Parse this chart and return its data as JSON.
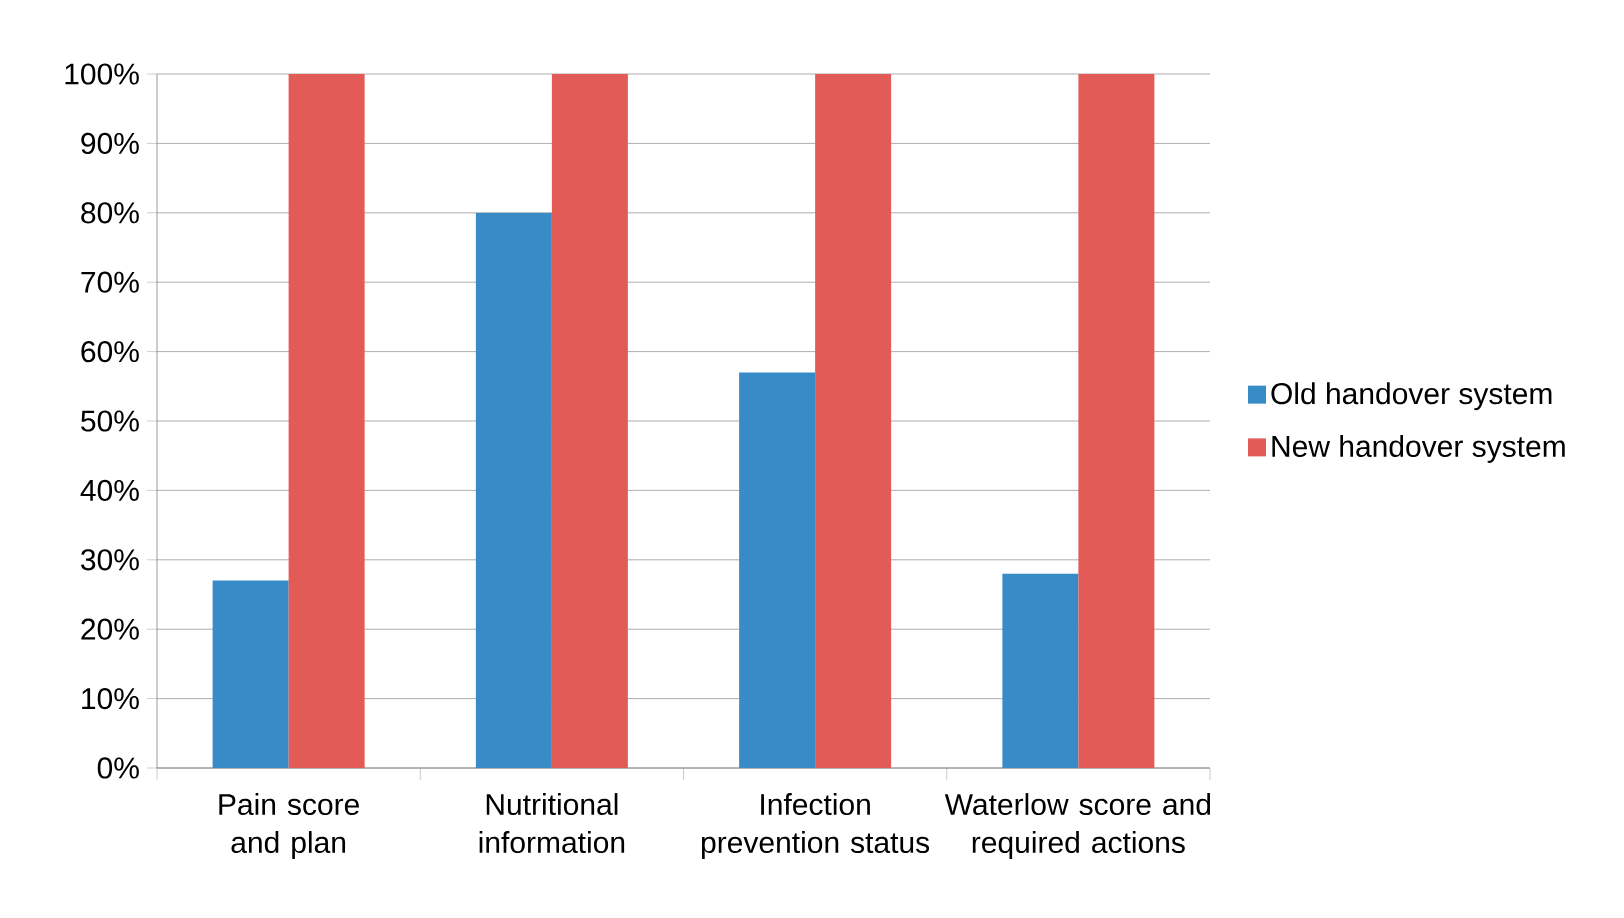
{
  "chart_data": {
    "type": "bar",
    "categories": [
      "Pain score and plan",
      "Nutritional information",
      "Infection prevention status",
      "Waterlow score and required actions"
    ],
    "series": [
      {
        "name": "Old handover system",
        "color": "#378bc7",
        "values": [
          27,
          80,
          57,
          28
        ]
      },
      {
        "name": "New handover system",
        "color": "#e25b56",
        "values": [
          100,
          100,
          100,
          100
        ]
      }
    ],
    "ylim": [
      0,
      100
    ],
    "yticks": [
      {
        "value": 0,
        "label": "0%"
      },
      {
        "value": 10,
        "label": "10%"
      },
      {
        "value": 20,
        "label": "20%"
      },
      {
        "value": 30,
        "label": "30%"
      },
      {
        "value": 40,
        "label": "40%"
      },
      {
        "value": 50,
        "label": "50%"
      },
      {
        "value": 60,
        "label": "60%"
      },
      {
        "value": 70,
        "label": "70%"
      },
      {
        "value": 80,
        "label": "80%"
      },
      {
        "value": 90,
        "label": "90%"
      },
      {
        "value": 100,
        "label": "100%"
      }
    ],
    "grid": "y",
    "legend": "right"
  }
}
